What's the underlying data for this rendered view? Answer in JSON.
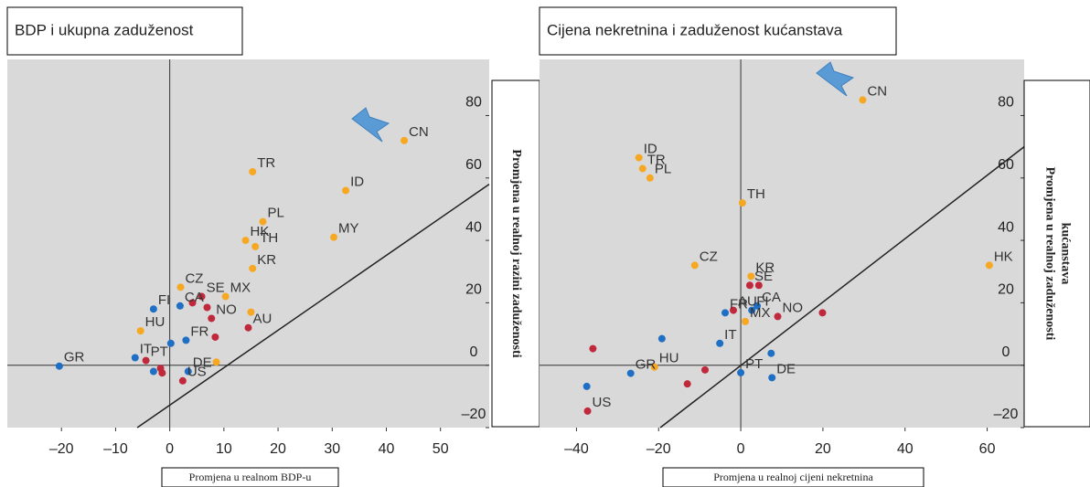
{
  "chart_data": [
    {
      "type": "scatter",
      "title": "BDP i ukupna zaduženost",
      "xlabel": "Promjena u realnom BDP-u",
      "ylabel": [
        "Promjena u realnoj razini zaduženosti"
      ],
      "x": [
        43.3,
        15.3,
        32.5,
        17.2,
        30.3,
        14,
        15.8,
        15.3,
        2,
        10.3,
        5.9,
        4.2,
        1.9,
        6.9,
        7.7,
        8.4,
        -3,
        -5.4,
        3,
        0.2,
        15,
        14.5,
        -4.4,
        -6.4,
        -20.4,
        3.4,
        8.6,
        2.4,
        -3,
        -1.7,
        -1.4
      ],
      "y": [
        72,
        62,
        56,
        46,
        41,
        40,
        38,
        31,
        25,
        22,
        22,
        20,
        19,
        18.5,
        15,
        9,
        18,
        11,
        8,
        7,
        17,
        12,
        1.5,
        2.4,
        -0.3,
        -2,
        1,
        -5,
        -2,
        -1,
        -2.5
      ],
      "labels": [
        "CN",
        "TR",
        "ID",
        "PL",
        "MY",
        "HK",
        "TH",
        "KR",
        "CZ",
        "MX",
        "SE",
        null,
        "CA",
        null,
        "NO",
        null,
        "FI",
        "HU",
        "FR",
        null,
        null,
        "AU",
        "PT",
        "IT",
        "GR",
        "DE",
        null,
        "US",
        null,
        null,
        null
      ],
      "colors": [
        "#f7a823",
        "#f7a823",
        "#f7a823",
        "#f7a823",
        "#f7a823",
        "#f7a823",
        "#f7a823",
        "#f7a823",
        "#f7a823",
        "#f7a823",
        "#c0283c",
        "#c0283c",
        "#1f6fc5",
        "#c0283c",
        "#c0283c",
        "#c0283c",
        "#1f6fc5",
        "#f7a823",
        "#1f6fc5",
        "#1f6fc5",
        "#f7a823",
        "#c0283c",
        "#c0283c",
        "#1f6fc5",
        "#1f6fc5",
        "#1f6fc5",
        "#f7a823",
        "#c0283c",
        "#1f6fc5",
        "#c0283c",
        "#c0283c"
      ],
      "trend_line": {
        "x": [
          -6,
          59
        ],
        "y": [
          -20,
          58
        ]
      },
      "xlim": [
        -30,
        59
      ],
      "ylim": [
        -20,
        98
      ],
      "xticks": [
        {
          "value": -20,
          "label": "–20"
        },
        {
          "value": -10,
          "label": "–10"
        },
        0,
        10,
        20,
        30,
        40,
        50
      ],
      "yticks": [
        {
          "value": -20,
          "label": "–20"
        },
        0,
        20,
        40,
        60,
        80
      ]
    },
    {
      "type": "scatter",
      "title": "Cijena nekretnina i zaduženost kućanstava",
      "xlabel": "Promjena u realnoj cijeni nekretnina",
      "ylabel": [
        "Promjena u realnoj zaduženosti",
        "kućanstava"
      ],
      "x": [
        29.7,
        -24.8,
        -23.9,
        -22.1,
        0.4,
        60.5,
        -11.2,
        2.5,
        2.2,
        4.4,
        4,
        -1.8,
        -3.8,
        2.7,
        1.1,
        9,
        19.9,
        -5.1,
        -19.2,
        -36,
        -21,
        7.4,
        -26.8,
        -8.7,
        -13,
        0,
        7.6,
        -37.5,
        -37.3
      ],
      "y": [
        85,
        66.5,
        63,
        60,
        52,
        32,
        32,
        28.5,
        25.6,
        25.6,
        19,
        17.6,
        16.8,
        17.6,
        14,
        15.6,
        16.8,
        7,
        8.5,
        5.3,
        -0.6,
        3.8,
        -2.6,
        -1.5,
        -6,
        -2.4,
        -4,
        -6.8,
        -14.7
      ],
      "labels": [
        "CN",
        "ID",
        "TR",
        "PL",
        "TH",
        "HK",
        "CZ",
        "KR",
        "SE",
        null,
        "CA",
        "AU",
        "FR",
        "FI",
        "MX",
        "NO",
        null,
        "IT",
        null,
        null,
        "HU",
        null,
        "GR",
        null,
        null,
        "PT",
        "DE",
        null,
        "US"
      ],
      "colors": [
        "#f7a823",
        "#f7a823",
        "#f7a823",
        "#f7a823",
        "#f7a823",
        "#f7a823",
        "#f7a823",
        "#f7a823",
        "#c0283c",
        "#c0283c",
        "#1f6fc5",
        "#c0283c",
        "#1f6fc5",
        "#1f6fc5",
        "#f7a823",
        "#c0283c",
        "#c0283c",
        "#1f6fc5",
        "#1f6fc5",
        "#c0283c",
        "#f7a823",
        "#1f6fc5",
        "#1f6fc5",
        "#c0283c",
        "#c0283c",
        "#1f6fc5",
        "#1f6fc5",
        "#1f6fc5",
        "#c0283c"
      ],
      "trend_line": {
        "x": [
          -19.6,
          69
        ],
        "y": [
          -20,
          70
        ]
      },
      "xlim": [
        -49,
        69
      ],
      "ylim": [
        -20,
        98
      ],
      "xticks": [
        {
          "value": -40,
          "label": "–40"
        },
        {
          "value": -20,
          "label": "–20"
        },
        0,
        20,
        40,
        60
      ],
      "yticks": [
        {
          "value": -20,
          "label": "–20"
        },
        0,
        20,
        40,
        60,
        80
      ]
    }
  ]
}
